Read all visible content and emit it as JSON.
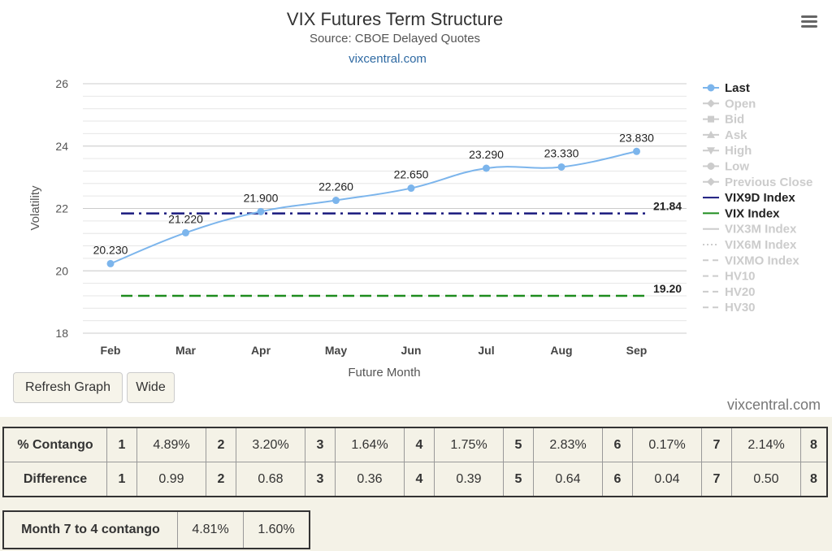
{
  "chart_data": {
    "type": "line",
    "title": "VIX Futures Term Structure",
    "subtitle": "Source: CBOE Delayed Quotes",
    "link": "vixcentral.com",
    "xlabel": "Future Month",
    "ylabel": "Volatility",
    "categories": [
      "Feb",
      "Mar",
      "Apr",
      "May",
      "Jun",
      "Jul",
      "Aug",
      "Sep"
    ],
    "ylim": [
      18,
      26
    ],
    "yticks": [
      18,
      20,
      22,
      24,
      26
    ],
    "grid": true,
    "legend_position": "right",
    "series": [
      {
        "name": "Last",
        "values": [
          20.23,
          21.22,
          21.9,
          22.26,
          22.65,
          23.29,
          23.33,
          23.83
        ],
        "labels": [
          "20.230",
          "21.220",
          "21.900",
          "22.260",
          "22.650",
          "23.290",
          "23.330",
          "23.830"
        ],
        "color": "#7cb5ec",
        "style": "solid-markers"
      },
      {
        "name": "VIX9D Index",
        "value": 21.84,
        "label": "21.84",
        "color": "#1a1a7e",
        "style": "dash-dot"
      },
      {
        "name": "VIX Index",
        "value": 19.2,
        "label": "19.20",
        "color": "#1e8c1e",
        "style": "dashed"
      }
    ],
    "legend": [
      {
        "name": "Last",
        "active": true,
        "symbol": "circle",
        "color": "#7cb5ec"
      },
      {
        "name": "Open",
        "active": false,
        "symbol": "diamond"
      },
      {
        "name": "Bid",
        "active": false,
        "symbol": "square"
      },
      {
        "name": "Ask",
        "active": false,
        "symbol": "triangle"
      },
      {
        "name": "High",
        "active": false,
        "symbol": "triangle-down"
      },
      {
        "name": "Low",
        "active": false,
        "symbol": "circle"
      },
      {
        "name": "Previous Close",
        "active": false,
        "symbol": "diamond"
      },
      {
        "name": "VIX9D Index",
        "active": true,
        "symbol": "line",
        "color": "#1a1a7e"
      },
      {
        "name": "VIX Index",
        "active": true,
        "symbol": "line",
        "color": "#1e8c1e"
      },
      {
        "name": "VIX3M Index",
        "active": false,
        "symbol": "line"
      },
      {
        "name": "VIX6M Index",
        "active": false,
        "symbol": "dotted"
      },
      {
        "name": "VIXMO Index",
        "active": false,
        "symbol": "dashed"
      },
      {
        "name": "HV10",
        "active": false,
        "symbol": "dashed"
      },
      {
        "name": "HV20",
        "active": false,
        "symbol": "dashed"
      },
      {
        "name": "HV30",
        "active": false,
        "symbol": "dashed"
      }
    ]
  },
  "buttons": {
    "refresh": "Refresh Graph",
    "wide": "Wide"
  },
  "credit": "vixcentral.com",
  "contango_table": {
    "rows": [
      {
        "header": "% Contango",
        "cells": [
          [
            "1",
            "4.89%"
          ],
          [
            "2",
            "3.20%"
          ],
          [
            "3",
            "1.64%"
          ],
          [
            "4",
            "1.75%"
          ],
          [
            "5",
            "2.83%"
          ],
          [
            "6",
            "0.17%"
          ],
          [
            "7",
            "2.14%"
          ],
          [
            "8",
            ""
          ]
        ]
      },
      {
        "header": "Difference",
        "cells": [
          [
            "1",
            "0.99"
          ],
          [
            "2",
            "0.68"
          ],
          [
            "3",
            "0.36"
          ],
          [
            "4",
            "0.39"
          ],
          [
            "5",
            "0.64"
          ],
          [
            "6",
            "0.04"
          ],
          [
            "7",
            "0.50"
          ],
          [
            "8",
            ""
          ]
        ]
      }
    ]
  },
  "month_7_to_4": {
    "header": "Month 7 to 4 contango",
    "values": [
      "4.81%",
      "1.60%"
    ]
  }
}
